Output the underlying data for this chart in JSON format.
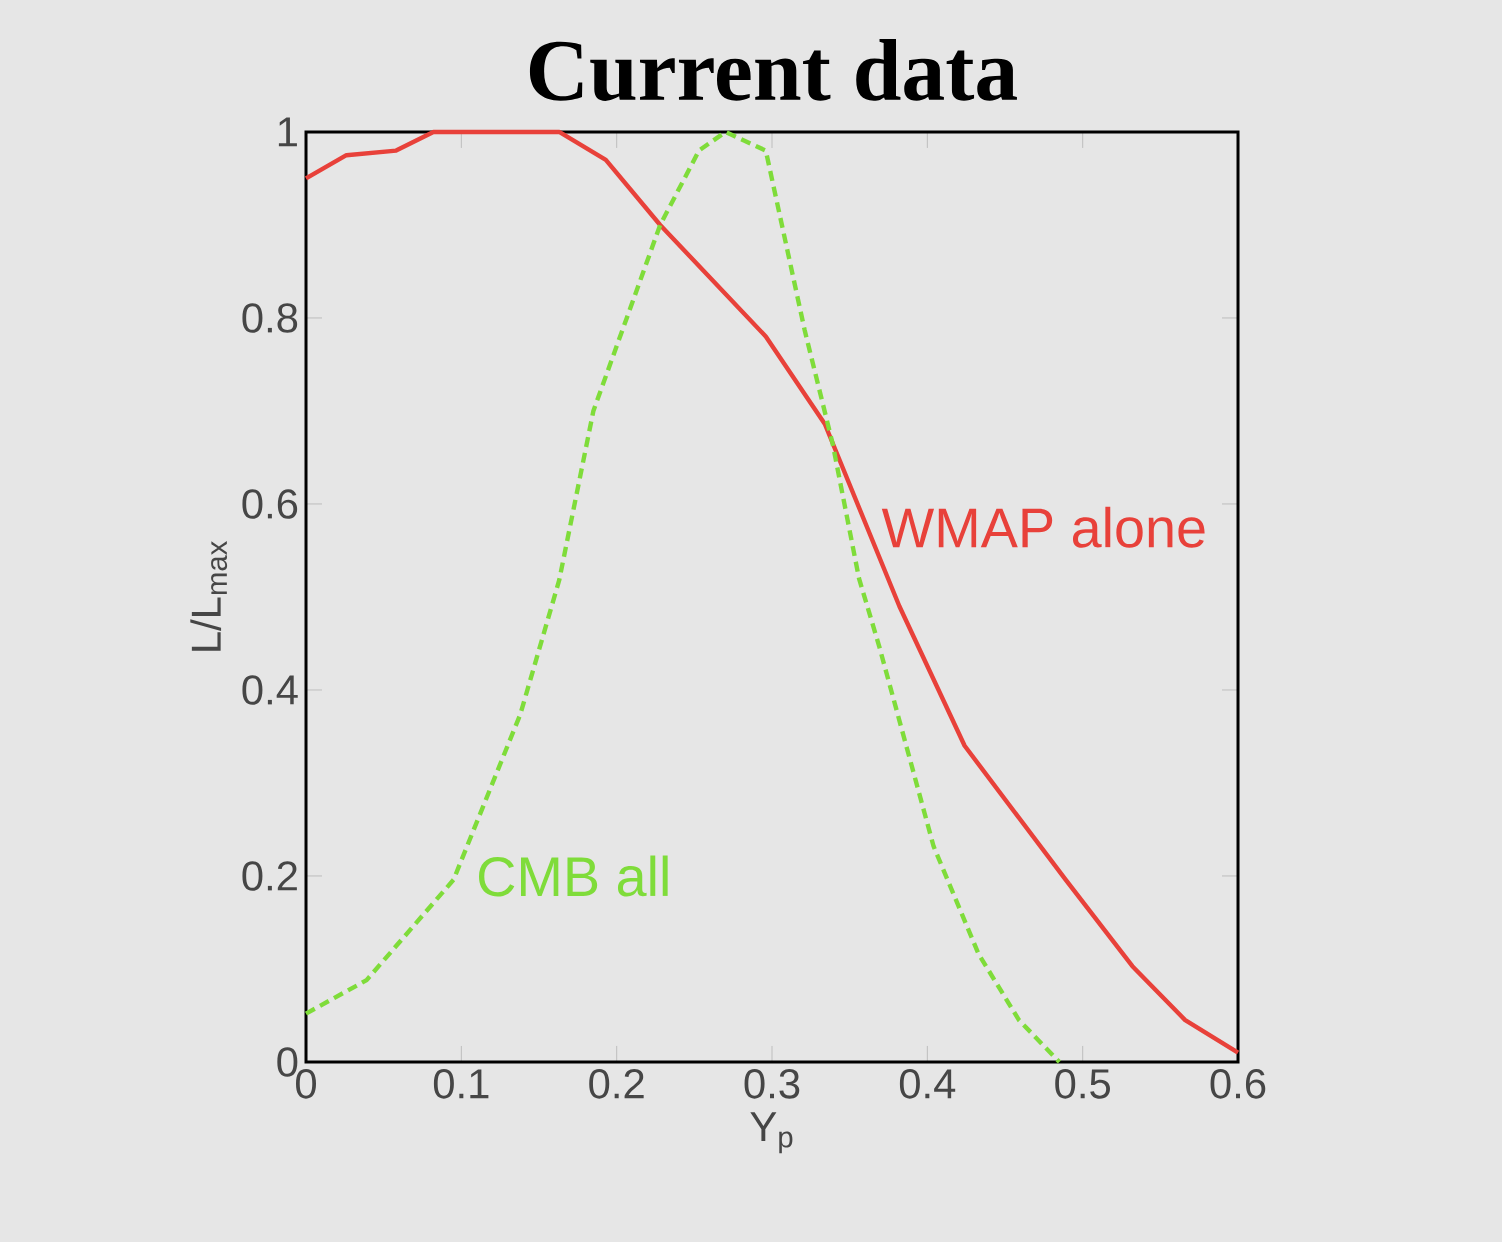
{
  "chart_data": {
    "type": "line",
    "title": "Current data",
    "xlabel": "Y$_{p}$",
    "ylabel": "L/L$_{max}$",
    "xlim": [
      0,
      0.6
    ],
    "ylim": [
      0,
      1
    ],
    "xticks": [
      0,
      0.1,
      0.2,
      0.3,
      0.4,
      0.5,
      0.6
    ],
    "yticks": [
      0,
      0.2,
      0.4,
      0.6,
      0.8,
      1
    ],
    "grid": false,
    "legend": false,
    "marker": "none",
    "series": [
      {
        "name": "WMAP alone",
        "color": "#e8413a",
        "line_style": "solid",
        "x": [
          0,
          0.026,
          0.058,
          0.082,
          0.12,
          0.163,
          0.193,
          0.228,
          0.296,
          0.334,
          0.382,
          0.424,
          0.489,
          0.532,
          0.566,
          0.6
        ],
        "values": [
          0.95,
          0.975,
          0.98,
          1.0,
          1.0,
          1.0,
          0.97,
          0.9,
          0.78,
          0.686,
          0.49,
          0.34,
          0.196,
          0.103,
          0.045,
          0.01
        ]
      },
      {
        "name": "CMB all",
        "color": "#7fdc3a",
        "line_style": "dashed",
        "x": [
          0,
          0.039,
          0.095,
          0.138,
          0.163,
          0.185,
          0.228,
          0.253,
          0.27,
          0.296,
          0.321,
          0.339,
          0.356,
          0.369,
          0.404,
          0.433,
          0.459,
          0.485
        ],
        "values": [
          0.052,
          0.088,
          0.196,
          0.374,
          0.518,
          0.7,
          0.9,
          0.98,
          1.0,
          0.98,
          0.787,
          0.665,
          0.52,
          0.447,
          0.232,
          0.116,
          0.045,
          0.0
        ]
      }
    ]
  }
}
